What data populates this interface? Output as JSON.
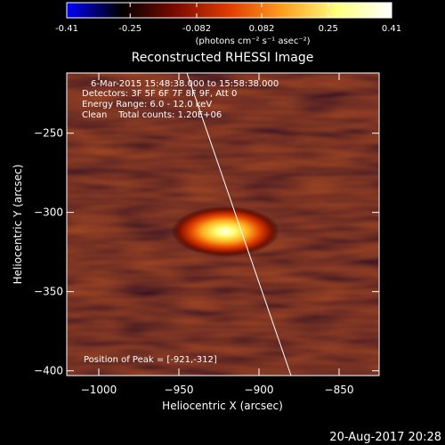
{
  "chart_data": {
    "type": "heatmap",
    "title": "Reconstructed RHESSI Image",
    "xlabel": "Heliocentric X (arcsec)",
    "ylabel": "Heliocentric Y (arcsec)",
    "xlim": [
      -1020,
      -825
    ],
    "ylim": [
      -403,
      -212
    ],
    "xticks": [
      -1000,
      -950,
      -900,
      -850
    ],
    "yticks": [
      -250,
      -300,
      -350,
      -400
    ],
    "colorbar": {
      "min": -0.41,
      "max": 0.41,
      "tick_labels": [
        "-0.41",
        "-0.25",
        "-0.082",
        "0.082",
        "0.25",
        "0.41"
      ],
      "tick_values": [
        -0.41,
        -0.25,
        -0.082,
        0.082,
        0.25,
        0.41
      ],
      "unit_label": "(photons cm⁻² s⁻¹ asec⁻²)"
    },
    "annotations": [
      "6-Mar-2015 15:48:38.000 to 15:58:38.000",
      "Detectors: 3F 5F 6F 7F 8F 9F, Att 0",
      "Energy Range: 6.0 - 12.0 keV",
      "Clean    Total counts: 1.20E+06"
    ],
    "peak_label": "Position of Peak = [-921,-312]",
    "source": {
      "x": -921,
      "y": -312,
      "sigma_major": 13,
      "sigma_minor": 6,
      "angle_deg": 63,
      "peak_value": 0.41
    },
    "limb_line": [
      [
        -945,
        -212
      ],
      [
        -880,
        -403
      ]
    ],
    "colormap": [
      "#0000ff",
      "#000000",
      "#7a0a00",
      "#e03c00",
      "#ffa020",
      "#ffff80",
      "#ffffff"
    ]
  },
  "footer_timestamp": "20-Aug-2017 20:28"
}
